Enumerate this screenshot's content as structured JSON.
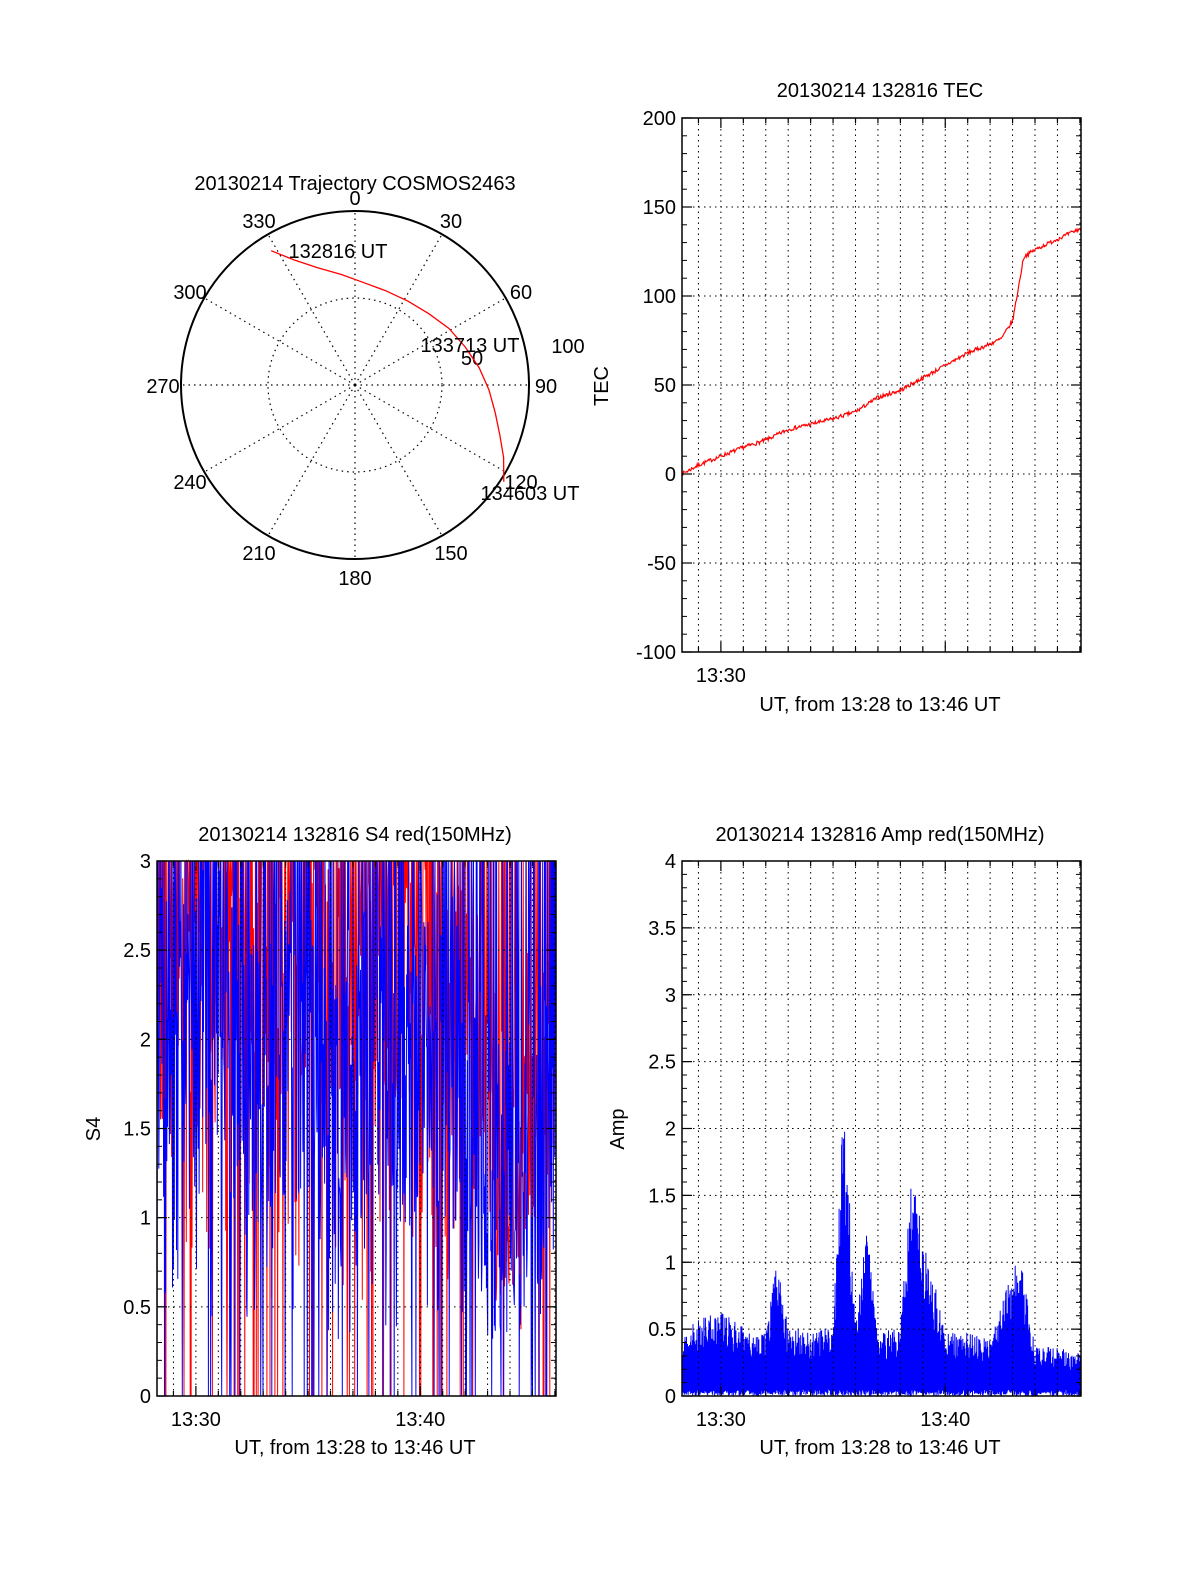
{
  "colors": {
    "red": "#ff0000",
    "blue": "#0000ff",
    "axis": "#000000",
    "grid": "#000000"
  },
  "chart_data": [
    {
      "id": "trajectory",
      "type": "scatter",
      "projection": "polar",
      "title": "20130214 Trajectory COSMOS2463",
      "azimuth_labels": [
        "0",
        "30",
        "60",
        "90",
        "120",
        "150",
        "180",
        "210",
        "240",
        "270",
        "300",
        "330"
      ],
      "elevation_ring_labels": [
        "50",
        "100"
      ],
      "grid": true,
      "series": [
        {
          "color": "#ff0000",
          "points": [
            {
              "az": 328,
              "r": 91
            },
            {
              "az": 334,
              "r": 80
            },
            {
              "az": 342,
              "r": 71
            },
            {
              "az": 353,
              "r": 64
            },
            {
              "az": 5,
              "r": 59
            },
            {
              "az": 18,
              "r": 57
            },
            {
              "az": 32,
              "r": 57
            },
            {
              "az": 46,
              "r": 59
            },
            {
              "az": 59,
              "r": 63
            },
            {
              "az": 71,
              "r": 67
            },
            {
              "az": 82,
              "r": 72
            },
            {
              "az": 92,
              "r": 77
            },
            {
              "az": 101,
              "r": 82
            },
            {
              "az": 109,
              "r": 88
            },
            {
              "az": 116,
              "r": 95
            },
            {
              "az": 123,
              "r": 102
            }
          ]
        }
      ],
      "annotations": [
        {
          "text": "132816 UT",
          "az": 330,
          "r": 90
        },
        {
          "text": "133713 UT",
          "az": 62,
          "r": 63
        },
        {
          "text": "134603 UT",
          "az": 122,
          "r": 101
        }
      ]
    },
    {
      "id": "tec",
      "type": "line",
      "title": "20130214 132816 TEC",
      "xlabel": "UT, from 13:28 to 13:46 UT",
      "ylabel": "TEC",
      "xlim": [
        "13:28:16",
        "13:46:03"
      ],
      "ylim": [
        -100,
        200
      ],
      "yticks": [
        -100,
        -50,
        0,
        50,
        100,
        150,
        200
      ],
      "xtick_labels": [
        "13:30"
      ],
      "grid": true,
      "series": [
        {
          "color": "#ff0000",
          "x": [
            "13:28:16",
            "13:29:00",
            "13:30:00",
            "13:31:00",
            "13:32:00",
            "13:33:00",
            "13:34:00",
            "13:35:00",
            "13:36:00",
            "13:37:00",
            "13:38:00",
            "13:39:00",
            "13:40:00",
            "13:41:00",
            "13:42:00",
            "13:42:30",
            "13:43:00",
            "13:43:30",
            "13:44:00",
            "13:45:00",
            "13:46:03"
          ],
          "y": [
            0,
            5,
            10,
            15,
            19,
            25,
            28,
            31,
            35,
            43,
            47,
            54,
            61,
            68,
            73,
            76,
            86,
            122,
            126,
            132,
            138
          ]
        }
      ]
    },
    {
      "id": "s4",
      "type": "line",
      "title": "20130214 132816 S4 red(150MHz)",
      "xlabel": "UT, from 13:28 to 13:46 UT",
      "ylabel": "S4",
      "xlim": [
        "13:28:16",
        "13:46:03"
      ],
      "ylim": [
        0,
        3
      ],
      "yticks": [
        0,
        0.5,
        1,
        1.5,
        2,
        2.5,
        3
      ],
      "xtick_labels": [
        "13:30",
        "13:40"
      ],
      "grid": true,
      "series": [
        {
          "color": "#ff0000",
          "x": [
            "13:28:20",
            "13:29:00",
            "13:30:00",
            "13:31:00",
            "13:32:00",
            "13:33:00",
            "13:34:00",
            "13:35:00",
            "13:36:00",
            "13:37:00",
            "13:38:00",
            "13:39:00",
            "13:40:00",
            "13:41:00",
            "13:42:00",
            "13:43:00",
            "13:44:00",
            "13:45:00",
            "13:46:00"
          ],
          "y": [
            2.3,
            2.6,
            2.4,
            2.5,
            2.7,
            2.4,
            2.6,
            2.5,
            2.3,
            2.6,
            2.4,
            2.5,
            2.6,
            2.4,
            2.3,
            1.5,
            1.3,
            1.8,
            2.0
          ]
        },
        {
          "color": "#0000ff",
          "x": [
            "13:28:20",
            "13:29:00",
            "13:30:00",
            "13:31:00",
            "13:32:00",
            "13:33:00",
            "13:34:00",
            "13:35:00",
            "13:36:00",
            "13:37:00",
            "13:38:00",
            "13:39:00",
            "13:40:00",
            "13:41:00",
            "13:42:00",
            "13:43:00",
            "13:44:00",
            "13:45:00",
            "13:46:00"
          ],
          "y": [
            1.9,
            2.2,
            2.1,
            2.3,
            1.8,
            1.6,
            1.9,
            2.1,
            1.4,
            1.8,
            2.0,
            1.7,
            1.9,
            2.1,
            1.8,
            1.2,
            1.1,
            1.4,
            1.6
          ]
        }
      ]
    },
    {
      "id": "amp",
      "type": "line",
      "title": "20130214 132816 Amp red(150MHz)",
      "xlabel": "UT, from 13:28 to 13:46 UT",
      "ylabel": "Amp",
      "xlim": [
        "13:28:16",
        "13:46:03"
      ],
      "ylim": [
        0,
        4
      ],
      "yticks": [
        0,
        0.5,
        1,
        1.5,
        2,
        2.5,
        3,
        3.5,
        4
      ],
      "xtick_labels": [
        "13:30",
        "13:40"
      ],
      "grid": true,
      "series": [
        {
          "color": "#0000ff",
          "x": [
            "13:28:16",
            "13:29:00",
            "13:30:00",
            "13:31:00",
            "13:32:00",
            "13:32:30",
            "13:33:00",
            "13:34:00",
            "13:35:00",
            "13:35:30",
            "13:36:00",
            "13:36:30",
            "13:37:00",
            "13:38:00",
            "13:38:30",
            "13:39:00",
            "13:40:00",
            "13:41:00",
            "13:42:00",
            "13:43:00",
            "13:43:30",
            "13:44:00",
            "13:45:00",
            "13:46:03"
          ],
          "y": [
            0.45,
            0.55,
            0.6,
            0.5,
            0.45,
            1.0,
            0.5,
            0.45,
            0.5,
            2.25,
            0.5,
            1.2,
            0.45,
            0.5,
            1.6,
            1.2,
            0.45,
            0.45,
            0.4,
            0.95,
            0.9,
            0.35,
            0.35,
            0.3
          ]
        }
      ]
    }
  ]
}
